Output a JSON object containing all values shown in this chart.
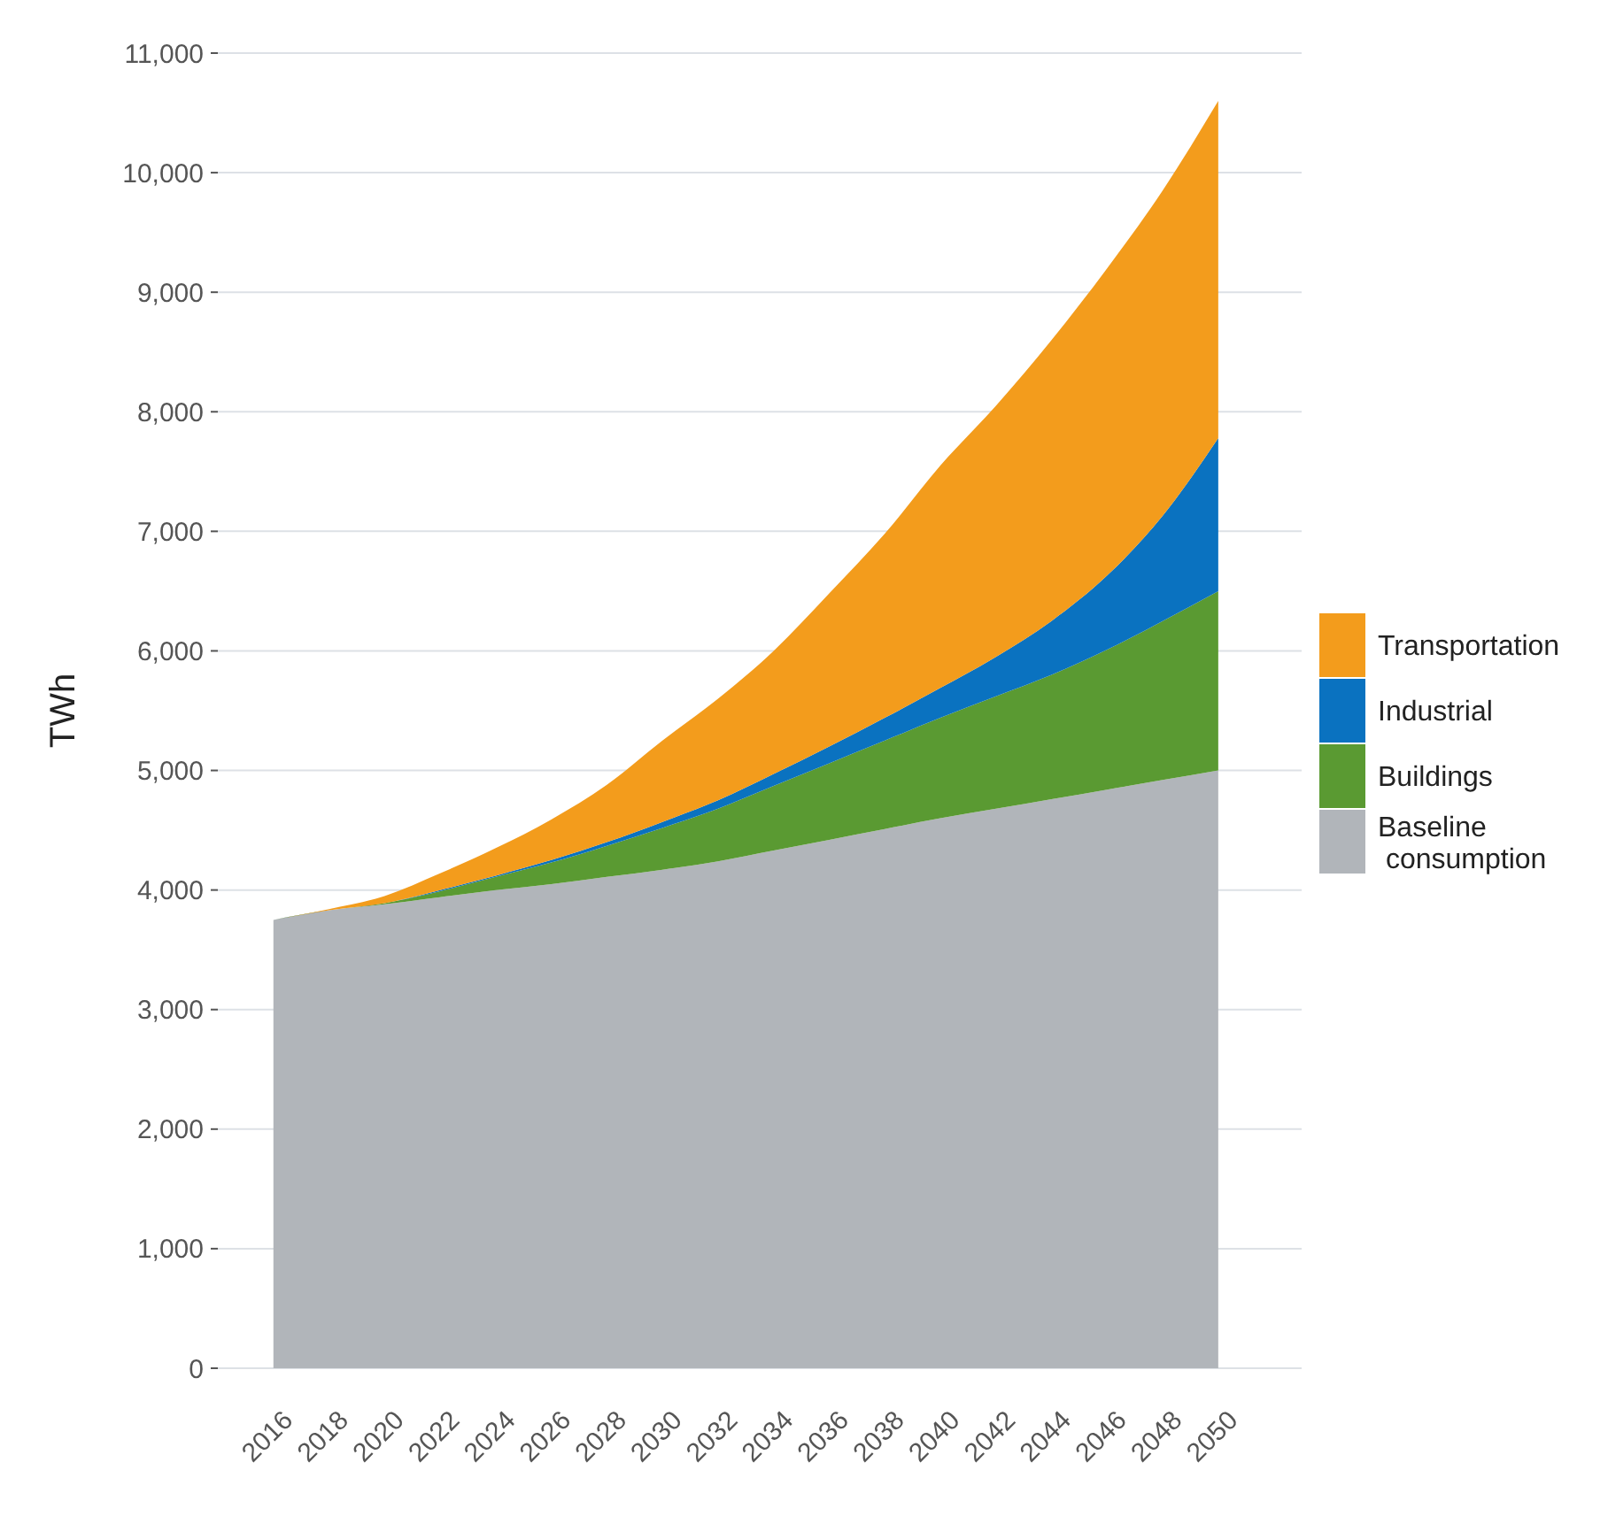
{
  "chart_data": {
    "type": "area",
    "stacked": true,
    "ylabel": "TWh",
    "x": [
      2016,
      2018,
      2020,
      2022,
      2024,
      2026,
      2028,
      2030,
      2032,
      2034,
      2036,
      2038,
      2040,
      2042,
      2044,
      2046,
      2048,
      2050
    ],
    "series": [
      {
        "name": "Baseline\n consumption",
        "color": "#b1b5ba",
        "values": [
          3750,
          3830,
          3880,
          3940,
          4000,
          4050,
          4110,
          4170,
          4240,
          4330,
          4420,
          4510,
          4600,
          4680,
          4760,
          4840,
          4920,
          5000
        ]
      },
      {
        "name": "Buildings",
        "color": "#5a9a32",
        "values": [
          0,
          0,
          10,
          50,
          110,
          180,
          260,
          350,
          440,
          540,
          640,
          740,
          840,
          940,
          1040,
          1170,
          1330,
          1500
        ]
      },
      {
        "name": "Industrial",
        "color": "#0a72c0",
        "values": [
          0,
          0,
          0,
          10,
          10,
          20,
          30,
          50,
          70,
          100,
          140,
          190,
          250,
          330,
          450,
          620,
          880,
          1280
        ]
      },
      {
        "name": "Transportation",
        "color": "#f39c1c",
        "values": [
          0,
          10,
          60,
          140,
          230,
          340,
          480,
          680,
          850,
          1030,
          1280,
          1540,
          1860,
          2100,
          2350,
          2570,
          2720,
          2820
        ]
      }
    ],
    "xlim": [
      2014,
      2053
    ],
    "xticks": [
      2016,
      2018,
      2020,
      2022,
      2024,
      2026,
      2028,
      2030,
      2032,
      2034,
      2036,
      2038,
      2040,
      2042,
      2044,
      2046,
      2048,
      2050
    ],
    "ylim": [
      0,
      11000
    ],
    "yticks": [
      0,
      {
        "value": 1000,
        "label": "1,000"
      },
      {
        "value": 2000,
        "label": "2,000"
      },
      {
        "value": 3000,
        "label": "3,000"
      },
      {
        "value": 4000,
        "label": "4,000"
      },
      {
        "value": 5000,
        "label": "5,000"
      },
      {
        "value": 6000,
        "label": "6,000"
      },
      {
        "value": 7000,
        "label": "7,000"
      },
      {
        "value": 8000,
        "label": "8,000"
      },
      {
        "value": 9000,
        "label": "9,000"
      },
      {
        "value": 10000,
        "label": "10,000"
      },
      {
        "value": 11000,
        "label": "11,000"
      }
    ],
    "grid": "y",
    "legend": "right"
  }
}
